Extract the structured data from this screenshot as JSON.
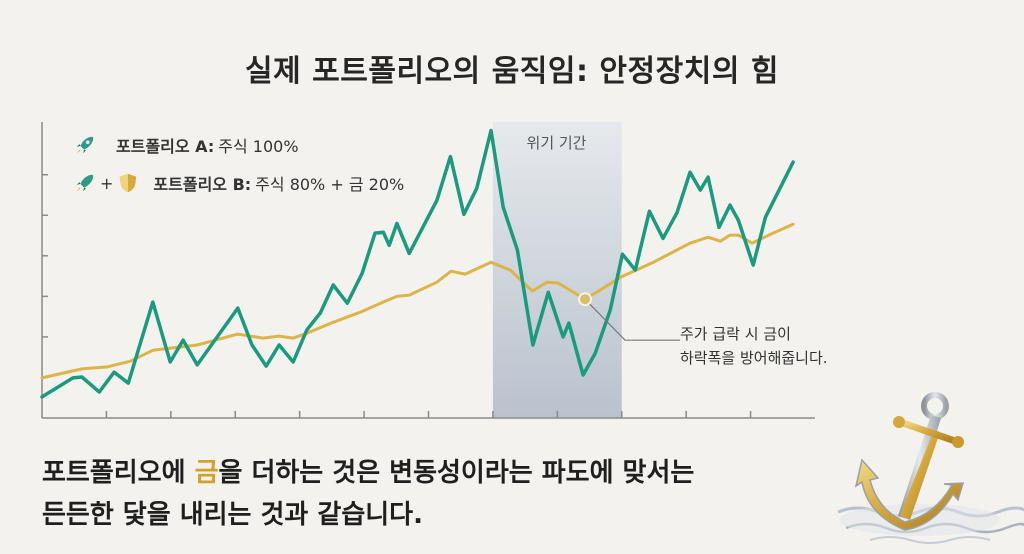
{
  "title": "실제 포트폴리오의 움직임: 안정장치의 힘",
  "legend": {
    "a": {
      "label": "포트폴리오 A:",
      "desc": "주식 100%",
      "icon": "rocket-icon"
    },
    "b": {
      "label": "포트폴리오 B:",
      "desc": "주식 80% + 금 20%",
      "icons": [
        "rocket-icon",
        "gold-shield-icon"
      ],
      "plus": "+"
    }
  },
  "colors": {
    "portfolio_a": "#1a9a7e",
    "portfolio_b": "#dcb447",
    "crisis_band": "#aab4c2",
    "background": "#f3f2ee"
  },
  "chart_data": {
    "type": "line",
    "title": "",
    "xlabel": "",
    "ylabel": "",
    "xlim": [
      0,
      12
    ],
    "ylim": [
      0,
      7.3
    ],
    "x_ticks": [
      1,
      2,
      3,
      4,
      5,
      6,
      7,
      8,
      9,
      10,
      11
    ],
    "y_ticks": [
      1,
      2,
      3,
      4,
      5,
      6
    ],
    "tick_labels_shown": false,
    "grid": false,
    "legend_position": "top-left",
    "series": [
      {
        "name": "포트폴리오 A: 주식 100%",
        "x": [
          0,
          0.48,
          0.62,
          0.89,
          1.12,
          1.34,
          1.72,
          1.99,
          2.19,
          2.41,
          3.04,
          3.26,
          3.48,
          3.68,
          3.9,
          4.11,
          4.32,
          4.52,
          4.74,
          4.97,
          5.17,
          5.3,
          5.39,
          5.51,
          5.7,
          6.13,
          6.34,
          6.55,
          6.75,
          6.97,
          7.16,
          7.38,
          7.62,
          7.86,
          8.09,
          8.18,
          8.4,
          8.59,
          8.82,
          9.01,
          9.21,
          9.43,
          9.64,
          9.86,
          10.06,
          10.22,
          10.34,
          10.51,
          10.68,
          10.81,
          11.04,
          11.23,
          11.66
        ],
        "y": [
          0.52,
          0.99,
          1.01,
          0.64,
          1.13,
          0.86,
          2.86,
          1.38,
          1.92,
          1.31,
          2.71,
          1.8,
          1.28,
          1.8,
          1.38,
          2.17,
          2.59,
          3.28,
          2.83,
          3.57,
          4.56,
          4.58,
          4.26,
          4.8,
          4.06,
          5.37,
          6.45,
          5.02,
          5.67,
          7.09,
          5.2,
          4.14,
          1.8,
          3.1,
          2.0,
          2.34,
          1.06,
          1.6,
          2.66,
          4.04,
          3.65,
          5.1,
          4.43,
          5.07,
          6.06,
          5.62,
          5.94,
          4.7,
          5.25,
          4.88,
          3.77,
          4.95,
          6.31
        ]
      },
      {
        "name": "포트폴리오 B: 주식 80% + 금 20%",
        "x": [
          0,
          0.62,
          1.01,
          1.37,
          1.72,
          2.41,
          3.04,
          3.43,
          3.68,
          3.9,
          4.11,
          4.52,
          4.94,
          5.3,
          5.51,
          5.7,
          6.13,
          6.35,
          6.57,
          6.97,
          7.27,
          7.61,
          7.84,
          8.01,
          8.43,
          8.66,
          8.98,
          9.49,
          10.06,
          10.34,
          10.53,
          10.68,
          10.81,
          11.02,
          11.35,
          11.66
        ],
        "y": [
          0.99,
          1.21,
          1.26,
          1.4,
          1.67,
          1.8,
          2.07,
          1.97,
          2.02,
          1.97,
          2.09,
          2.36,
          2.61,
          2.86,
          3.0,
          3.03,
          3.35,
          3.62,
          3.55,
          3.84,
          3.65,
          3.13,
          3.35,
          3.33,
          2.93,
          3.15,
          3.47,
          3.84,
          4.31,
          4.46,
          4.36,
          4.51,
          4.51,
          4.31,
          4.56,
          4.78
        ]
      }
    ],
    "crisis_band": {
      "label": "위기 기간",
      "x": [
        7,
        9
      ]
    },
    "annotation": {
      "text_line1": "주가 급락 시 금이",
      "text_line2": "하락폭을 방어해줍니다.",
      "x": 8.43,
      "y": 2.93
    }
  },
  "caption": {
    "line1_pre": "포트폴리오에 ",
    "line1_gold": "금",
    "line1_post": "을 더하는 것은 변동성이라는 파도에 맞서는",
    "line2": "든든한 닻을 내리는 것과 같습니다."
  },
  "illustration": "anchor-in-waves"
}
